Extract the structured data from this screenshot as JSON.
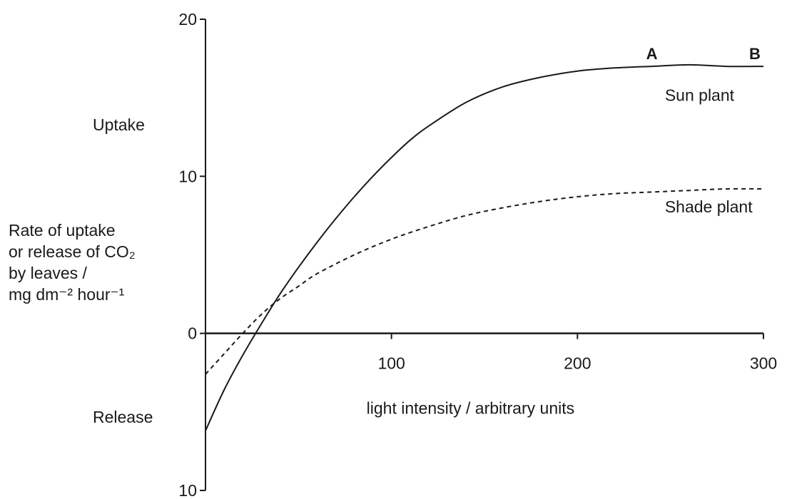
{
  "chart_data": {
    "type": "line",
    "x_label": "light intensity / arbitrary units",
    "y_label_lines": [
      "Rate of uptake",
      "or release of CO₂",
      "by leaves /",
      "mg dm⁻² hour⁻¹"
    ],
    "region_labels": {
      "upper": "Uptake",
      "lower": "Release"
    },
    "x_range": [
      0,
      300
    ],
    "y_range": [
      -10,
      20
    ],
    "x_ticks": [
      100,
      200,
      300
    ],
    "x_tick_labels": [
      "100",
      "200",
      "300"
    ],
    "y_ticks": [
      20,
      10,
      0,
      -10
    ],
    "y_tick_labels": [
      "20",
      "10",
      "0",
      "10"
    ],
    "grid": false,
    "series": [
      {
        "name": "Sun plant",
        "style": "solid",
        "x": [
          0,
          10,
          20,
          30,
          40,
          50,
          60,
          70,
          80,
          90,
          100,
          110,
          120,
          140,
          160,
          180,
          200,
          220,
          240,
          260,
          280,
          300
        ],
        "y": [
          -6.2,
          -3.6,
          -1.4,
          0.6,
          2.5,
          4.2,
          5.8,
          7.3,
          8.7,
          10.0,
          11.2,
          12.3,
          13.2,
          14.7,
          15.7,
          16.3,
          16.7,
          16.9,
          17.0,
          17.1,
          17.0,
          17.0
        ]
      },
      {
        "name": "Shade plant",
        "style": "dashed",
        "x": [
          0,
          10,
          20,
          30,
          40,
          50,
          60,
          80,
          100,
          120,
          140,
          160,
          180,
          200,
          220,
          240,
          260,
          280,
          300
        ],
        "y": [
          -2.6,
          -1.3,
          0.0,
          1.2,
          2.2,
          3.0,
          3.8,
          5.0,
          6.0,
          6.8,
          7.5,
          8.0,
          8.4,
          8.7,
          8.9,
          9.0,
          9.1,
          9.2,
          9.2
        ]
      }
    ],
    "point_labels": [
      {
        "text": "A",
        "x": 240,
        "y": 17.0
      },
      {
        "text": "B",
        "x": 300,
        "y": 17.0
      }
    ],
    "curve_labels": [
      "Sun plant",
      "Shade plant"
    ]
  }
}
